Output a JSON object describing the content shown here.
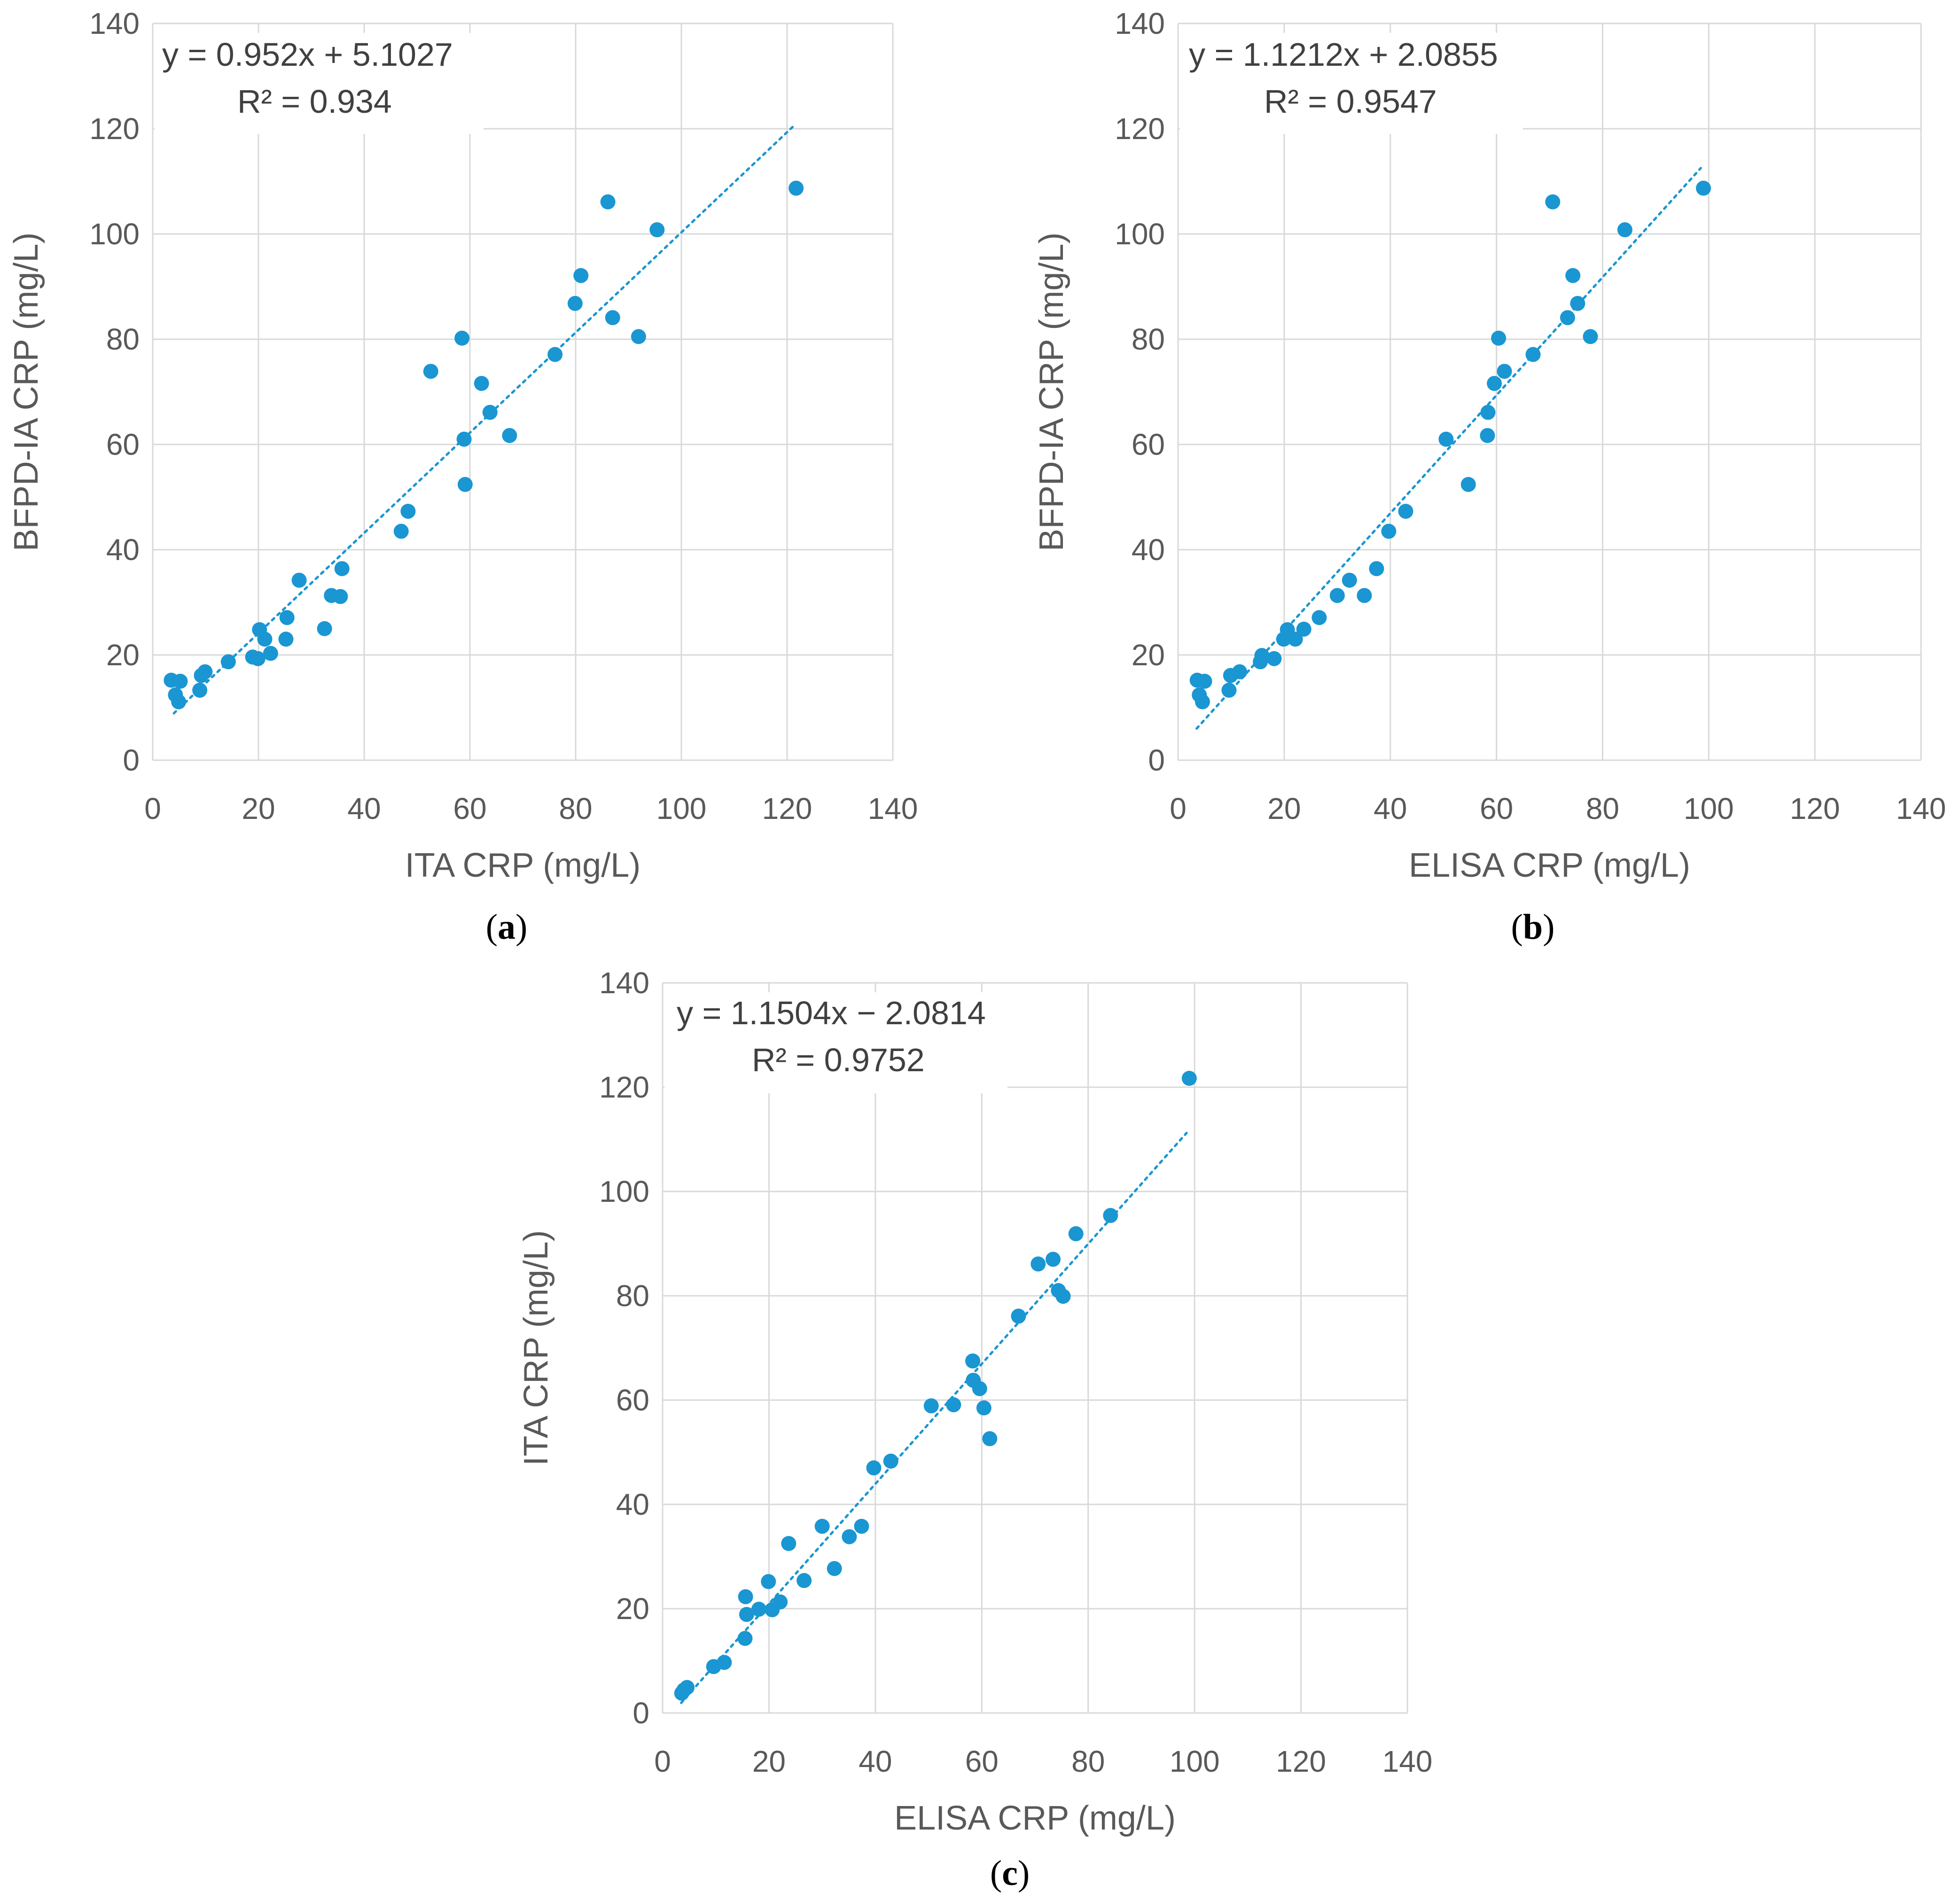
{
  "figure": {
    "panel_labels": [
      {
        "open": "(",
        "letter": "a",
        "close": ")"
      },
      {
        "open": "(",
        "letter": "b",
        "close": ")"
      },
      {
        "open": "(",
        "letter": "c",
        "close": ")"
      }
    ]
  },
  "colors": {
    "point": "#1a96d2",
    "trend": "#1a96d2",
    "grid": "#d9d9d9",
    "text": "#595959"
  },
  "chart_data": [
    {
      "type": "scatter",
      "xlabel": "ITA CRP (mg/L)",
      "ylabel": "BFPD-IA CRP (mg/L)",
      "xlim": [
        0,
        140
      ],
      "ylim": [
        0,
        140
      ],
      "ticks": [
        "0",
        "20",
        "40",
        "60",
        "80",
        "100",
        "120",
        "140"
      ],
      "grid": true,
      "equation": "y = 0.952x + 5.1027",
      "r2": "R² = 0.934",
      "trendline": {
        "slope": 0.952,
        "intercept": 5.1027,
        "x_range": [
          4,
          121.5
        ]
      },
      "points": [
        [
          3.5,
          15.2
        ],
        [
          4.3,
          12.4
        ],
        [
          4.9,
          11.1
        ],
        [
          5.2,
          15.0
        ],
        [
          8.9,
          13.3
        ],
        [
          9.2,
          16.1
        ],
        [
          9.9,
          16.8
        ],
        [
          14.3,
          18.7
        ],
        [
          18.9,
          19.6
        ],
        [
          19.9,
          19.3
        ],
        [
          20.2,
          24.8
        ],
        [
          21.2,
          23.0
        ],
        [
          22.3,
          20.3
        ],
        [
          25.2,
          23.0
        ],
        [
          25.4,
          27.1
        ],
        [
          27.7,
          34.2
        ],
        [
          32.5,
          25.0
        ],
        [
          33.8,
          31.3
        ],
        [
          35.5,
          31.1
        ],
        [
          35.8,
          36.4
        ],
        [
          47.0,
          43.5
        ],
        [
          48.3,
          47.3
        ],
        [
          52.6,
          73.9
        ],
        [
          58.5,
          80.2
        ],
        [
          58.9,
          61.0
        ],
        [
          59.1,
          52.4
        ],
        [
          62.2,
          71.6
        ],
        [
          63.8,
          66.1
        ],
        [
          67.5,
          61.7
        ],
        [
          76.1,
          77.1
        ],
        [
          79.9,
          86.8
        ],
        [
          81.0,
          92.1
        ],
        [
          86.1,
          106.1
        ],
        [
          87.0,
          84.1
        ],
        [
          91.9,
          80.5
        ],
        [
          95.4,
          100.8
        ],
        [
          121.7,
          108.7
        ]
      ]
    },
    {
      "type": "scatter",
      "xlabel": "ELISA CRP (mg/L)",
      "ylabel": "BFPD-IA CRP (mg/L)",
      "xlim": [
        0,
        140
      ],
      "ylim": [
        0,
        140
      ],
      "ticks": [
        "0",
        "20",
        "40",
        "60",
        "80",
        "100",
        "120",
        "140"
      ],
      "grid": true,
      "equation": "y = 1.1212x + 2.0855",
      "r2": "R² = 0.9547",
      "trendline": {
        "slope": 1.1212,
        "intercept": 2.0855,
        "x_range": [
          3.5,
          98.5
        ]
      },
      "points": [
        [
          3.6,
          15.2
        ],
        [
          4.0,
          12.4
        ],
        [
          4.6,
          11.1
        ],
        [
          5.0,
          15.0
        ],
        [
          9.6,
          13.3
        ],
        [
          9.9,
          16.1
        ],
        [
          11.6,
          16.8
        ],
        [
          15.5,
          18.7
        ],
        [
          15.8,
          19.9
        ],
        [
          18.1,
          19.3
        ],
        [
          19.9,
          23.0
        ],
        [
          20.6,
          24.8
        ],
        [
          22.1,
          23.0
        ],
        [
          23.7,
          24.9
        ],
        [
          26.6,
          27.1
        ],
        [
          30.0,
          31.3
        ],
        [
          32.3,
          34.2
        ],
        [
          35.1,
          31.3
        ],
        [
          37.4,
          36.4
        ],
        [
          39.7,
          43.5
        ],
        [
          42.9,
          47.3
        ],
        [
          50.5,
          61.0
        ],
        [
          54.7,
          52.4
        ],
        [
          58.3,
          61.7
        ],
        [
          58.4,
          66.1
        ],
        [
          59.6,
          71.6
        ],
        [
          60.4,
          80.2
        ],
        [
          61.5,
          73.9
        ],
        [
          66.9,
          77.1
        ],
        [
          70.6,
          106.1
        ],
        [
          73.4,
          84.1
        ],
        [
          74.4,
          92.1
        ],
        [
          75.3,
          86.8
        ],
        [
          77.7,
          80.5
        ],
        [
          84.2,
          100.8
        ],
        [
          99.0,
          108.7
        ]
      ]
    },
    {
      "type": "scatter",
      "xlabel": "ELISA CRP (mg/L)",
      "ylabel": "ITA CRP (mg/L)",
      "xlim": [
        0,
        140
      ],
      "ylim": [
        0,
        140
      ],
      "ticks": [
        "0",
        "20",
        "40",
        "60",
        "80",
        "100",
        "120",
        "140"
      ],
      "grid": true,
      "equation": "y = 1.1504x − 2.0814",
      "r2": "R² = 0.9752",
      "trendline": {
        "slope": 1.1504,
        "intercept": -2.0814,
        "x_range": [
          3.5,
          98.5
        ]
      },
      "points": [
        [
          3.6,
          3.8
        ],
        [
          4.0,
          4.4
        ],
        [
          4.6,
          4.9
        ],
        [
          9.6,
          8.9
        ],
        [
          11.6,
          9.7
        ],
        [
          15.5,
          14.3
        ],
        [
          15.6,
          22.3
        ],
        [
          15.8,
          18.9
        ],
        [
          18.1,
          19.9
        ],
        [
          19.9,
          25.2
        ],
        [
          20.6,
          19.8
        ],
        [
          22.1,
          21.3
        ],
        [
          23.7,
          32.5
        ],
        [
          26.6,
          25.4
        ],
        [
          30.0,
          35.8
        ],
        [
          32.3,
          27.7
        ],
        [
          35.1,
          33.8
        ],
        [
          37.4,
          35.8
        ],
        [
          39.7,
          47.0
        ],
        [
          42.9,
          48.3
        ],
        [
          50.5,
          58.9
        ],
        [
          54.7,
          59.1
        ],
        [
          58.3,
          67.5
        ],
        [
          58.4,
          63.8
        ],
        [
          59.6,
          62.2
        ],
        [
          60.4,
          58.5
        ],
        [
          61.5,
          52.6
        ],
        [
          66.9,
          76.1
        ],
        [
          70.6,
          86.1
        ],
        [
          73.4,
          87.0
        ],
        [
          74.4,
          81.0
        ],
        [
          75.3,
          79.9
        ],
        [
          77.7,
          91.9
        ],
        [
          84.2,
          95.4
        ],
        [
          99.0,
          121.7
        ]
      ]
    }
  ]
}
